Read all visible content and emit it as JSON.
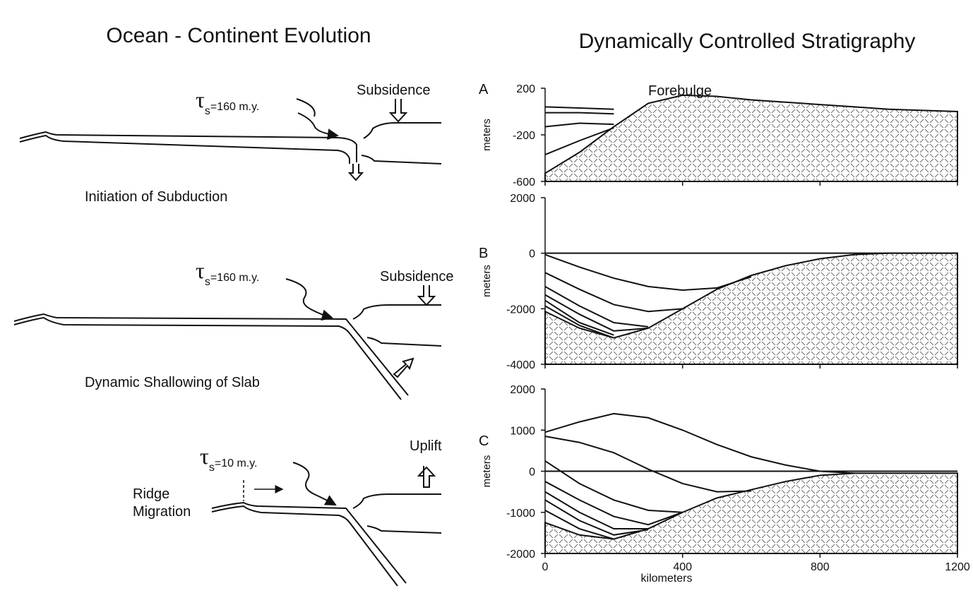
{
  "left": {
    "title": "Ocean - Continent Evolution",
    "panels": [
      {
        "caption": "Initiation of Subduction",
        "tau": {
          "symbol": "τ",
          "sub": "s",
          "text": "=160 m.y."
        },
        "arrow_label": "Subsidence"
      },
      {
        "caption": "Dynamic Shallowing of Slab",
        "tau": {
          "symbol": "τ",
          "sub": "s",
          "text": "=160 m.y."
        },
        "arrow_label": "Subsidence"
      },
      {
        "caption": "Ridge",
        "caption2": "Migration",
        "tau": {
          "symbol": "τ",
          "sub": "s",
          "text": "=10 m.y."
        },
        "arrow_label": "Uplift"
      }
    ]
  },
  "right": {
    "title": "Dynamically Controlled Stratigraphy"
  },
  "chart_data": [
    {
      "type": "line",
      "label": "A",
      "ylabel": "meters",
      "annotation": "Forebulge",
      "x": [
        0,
        100,
        200,
        300,
        400,
        500,
        600,
        700,
        800,
        900,
        1000,
        1100,
        1200
      ],
      "xlim": [
        0,
        1200
      ],
      "xticks": [
        0,
        400,
        800,
        1200
      ],
      "xtick_labels": false,
      "ylim": [
        -600,
        200
      ],
      "yticks": [
        200,
        -200,
        -600
      ],
      "basement": [
        -530,
        -350,
        -130,
        70,
        140,
        130,
        100,
        80,
        60,
        40,
        20,
        10,
        0
      ],
      "series": [
        {
          "color": "#111",
          "values": [
            40,
            30,
            20,
            null,
            null,
            null,
            null,
            null,
            null,
            null,
            null,
            null,
            null
          ]
        },
        {
          "color": "#111",
          "values": [
            -10,
            -10,
            -20,
            null,
            null,
            null,
            null,
            null,
            null,
            null,
            null,
            null,
            null
          ]
        },
        {
          "color": "#111",
          "values": [
            -130,
            -100,
            -110,
            null,
            null,
            null,
            null,
            null,
            null,
            null,
            null,
            null,
            null
          ]
        },
        {
          "color": "#111",
          "values": [
            -370,
            -250,
            -140,
            null,
            null,
            null,
            null,
            null,
            null,
            null,
            null,
            null,
            null
          ]
        }
      ]
    },
    {
      "type": "line",
      "label": "B",
      "ylabel": "meters",
      "x": [
        0,
        100,
        200,
        300,
        400,
        500,
        600,
        700,
        800,
        900,
        1000,
        1100,
        1200
      ],
      "xlim": [
        0,
        1200
      ],
      "xticks": [
        0,
        400,
        800,
        1200
      ],
      "xtick_labels": false,
      "ylim": [
        -4000,
        2000
      ],
      "yticks": [
        2000,
        0,
        -2000,
        -4000
      ],
      "zero_line": true,
      "basement": [
        -2100,
        -2700,
        -3050,
        -2700,
        -2000,
        -1300,
        -800,
        -450,
        -200,
        -50,
        0,
        0,
        0
      ],
      "series": [
        {
          "color": "#111",
          "values": [
            -50,
            -500,
            -900,
            -1200,
            -1330,
            -1250,
            -850,
            null,
            null,
            null,
            null,
            null,
            null
          ]
        },
        {
          "color": "#111",
          "values": [
            -700,
            -1300,
            -1850,
            -2100,
            -2000,
            null,
            null,
            null,
            null,
            null,
            null,
            null,
            null
          ]
        },
        {
          "color": "#111",
          "values": [
            -1200,
            -1900,
            -2500,
            -2650,
            null,
            null,
            null,
            null,
            null,
            null,
            null,
            null,
            null
          ]
        },
        {
          "color": "#111",
          "values": [
            -1500,
            -2200,
            -2800,
            -2700,
            null,
            null,
            null,
            null,
            null,
            null,
            null,
            null,
            null
          ]
        },
        {
          "color": "#111",
          "values": [
            -1700,
            -2500,
            -2950,
            null,
            null,
            null,
            null,
            null,
            null,
            null,
            null,
            null,
            null
          ]
        },
        {
          "color": "#111",
          "values": [
            -1900,
            -2600,
            -3050,
            null,
            null,
            null,
            null,
            null,
            null,
            null,
            null,
            null,
            null
          ]
        }
      ]
    },
    {
      "type": "line",
      "label": "C",
      "ylabel": "meters",
      "xlabel": "kilometers",
      "x": [
        0,
        100,
        200,
        300,
        400,
        500,
        600,
        700,
        800,
        900,
        1000,
        1100,
        1200
      ],
      "xlim": [
        0,
        1200
      ],
      "xticks": [
        0,
        400,
        800,
        1200
      ],
      "xtick_labels": true,
      "ylim": [
        -2000,
        2000
      ],
      "yticks": [
        2000,
        1000,
        0,
        -1000,
        -2000
      ],
      "zero_line": true,
      "basement": [
        -1250,
        -1550,
        -1650,
        -1400,
        -1000,
        -650,
        -450,
        -250,
        -100,
        -50,
        -50,
        -50,
        -50
      ],
      "series": [
        {
          "color": "#111",
          "values": [
            950,
            1200,
            1400,
            1300,
            1000,
            650,
            350,
            150,
            0,
            -50,
            null,
            null,
            null
          ]
        },
        {
          "color": "#111",
          "values": [
            850,
            700,
            450,
            50,
            -300,
            -500,
            -480,
            null,
            null,
            null,
            null,
            null,
            null
          ]
        },
        {
          "color": "#111",
          "values": [
            250,
            -300,
            -700,
            -950,
            -1000,
            null,
            null,
            null,
            null,
            null,
            null,
            null,
            null
          ]
        },
        {
          "color": "#111",
          "values": [
            -250,
            -700,
            -1100,
            -1300,
            -1000,
            null,
            null,
            null,
            null,
            null,
            null,
            null,
            null
          ]
        },
        {
          "color": "#111",
          "values": [
            -500,
            -1000,
            -1400,
            -1400,
            null,
            null,
            null,
            null,
            null,
            null,
            null,
            null,
            null
          ]
        },
        {
          "color": "#111",
          "values": [
            -700,
            -1200,
            -1550,
            -1420,
            null,
            null,
            null,
            null,
            null,
            null,
            null,
            null,
            null
          ]
        },
        {
          "color": "#111",
          "values": [
            -950,
            -1400,
            -1650,
            null,
            null,
            null,
            null,
            null,
            null,
            null,
            null,
            null,
            null
          ]
        }
      ]
    }
  ]
}
